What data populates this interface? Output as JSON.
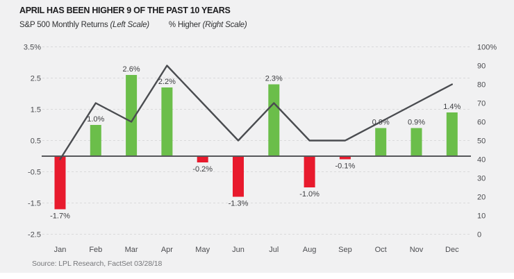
{
  "header": {
    "title": "APRIL HAS BEEN HIGHER 9 OF THE PAST 10 YEARS",
    "legend_left_label": "S&P 500 Monthly Returns",
    "legend_left_note": "(Left Scale)",
    "legend_right_label": "% Higher",
    "legend_right_note": "(Right Scale)"
  },
  "source": "Source: LPL Research, FactSet 03/28/18",
  "colors": {
    "background": "#f1f1f2",
    "positive_bar": "#6bbe4a",
    "negative_bar": "#e81a2d",
    "line": "#4a4c50",
    "gridline": "#d9d9db",
    "baseline": "#56575b"
  },
  "chart_data": {
    "type": "bar",
    "subtype": "combo bar + line, dual axis",
    "categories": [
      "Jan",
      "Feb",
      "Mar",
      "Apr",
      "May",
      "Jun",
      "Jul",
      "Aug",
      "Sep",
      "Oct",
      "Nov",
      "Dec"
    ],
    "series": [
      {
        "name": "S&P 500 Monthly Returns",
        "type": "bar",
        "axis": "left",
        "unit": "%",
        "values": [
          -1.7,
          1.0,
          2.6,
          2.2,
          -0.2,
          -1.3,
          2.3,
          -1.0,
          -0.1,
          0.9,
          0.9,
          1.4
        ],
        "labels": [
          "-1.7%",
          "1.0%",
          "2.6%",
          "2.2%",
          "-0.2%",
          "-1.3%",
          "2.3%",
          "-1.0%",
          "-0.1%",
          "0.9%",
          "0.9%",
          "1.4%"
        ]
      },
      {
        "name": "% Higher",
        "type": "line",
        "axis": "right",
        "unit": "%",
        "values": [
          40,
          70,
          60,
          90,
          70,
          50,
          70,
          50,
          50,
          60,
          70,
          80
        ]
      }
    ],
    "left_axis": {
      "tick_labels": [
        "3.5%",
        "2.5",
        "1.5",
        "0.5",
        "-0.5",
        "-1.5",
        "-2.5"
      ],
      "tick_values": [
        3.5,
        2.5,
        1.5,
        0.5,
        -0.5,
        -1.5,
        -2.5
      ],
      "range": [
        -2.5,
        3.5
      ]
    },
    "right_axis": {
      "tick_labels": [
        "100%",
        "90",
        "80",
        "70",
        "60",
        "50",
        "40",
        "30",
        "20",
        "10",
        "0"
      ],
      "tick_values": [
        100,
        90,
        80,
        70,
        60,
        50,
        40,
        30,
        20,
        10,
        0
      ],
      "range": [
        0,
        100
      ]
    },
    "grid": "horizontal dashed at left-axis ticks",
    "legend_position": "top"
  }
}
